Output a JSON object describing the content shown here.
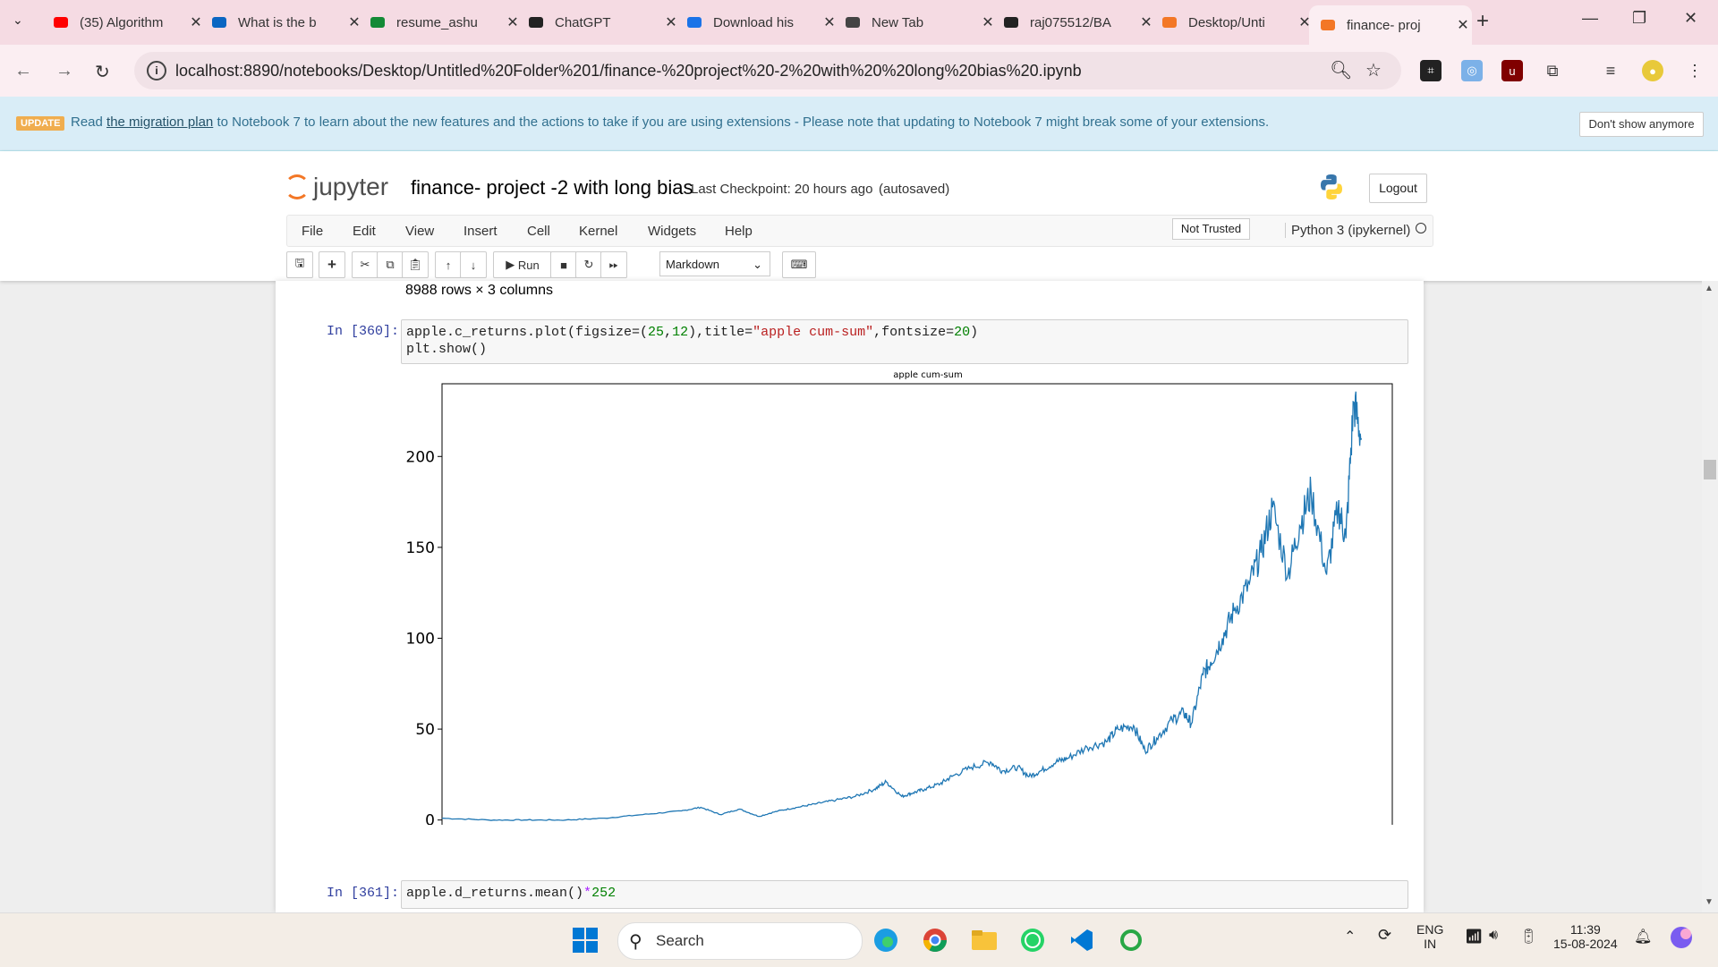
{
  "tabs": [
    {
      "label": "(35) Algorithm",
      "icon": "youtube-icon",
      "color": "#ff0000"
    },
    {
      "label": "What is the b",
      "icon": "linkedin-icon",
      "color": "#0a66c2"
    },
    {
      "label": "resume_ashu",
      "icon": "overleaf-icon",
      "color": "#138a36"
    },
    {
      "label": "ChatGPT",
      "icon": "chatgpt-icon",
      "color": "#222222"
    },
    {
      "label": "Download his",
      "icon": "download-icon",
      "color": "#1a73e8"
    },
    {
      "label": "New Tab",
      "icon": "chrome-icon",
      "color": "#444444"
    },
    {
      "label": "raj075512/BA",
      "icon": "github-icon",
      "color": "#222222"
    },
    {
      "label": "Desktop/Unti",
      "icon": "jupyter-icon",
      "color": "#f37726"
    },
    {
      "label": "finance- proj",
      "icon": "notebook-icon",
      "color": "#f37726"
    }
  ],
  "url": "localhost:8890/notebooks/Desktop/Untitled%20Folder%201/finance-%20project%20-2%20with%20%20long%20bias%20.ipynb",
  "banner": {
    "badge": "UPDATE",
    "text_before": "Read ",
    "link": "the migration plan",
    "text_after": " to Notebook 7 to learn about the new features and the actions to take if you are using extensions - Please note that updating to Notebook 7 might break some of your extensions.",
    "dismiss": "Don't show anymore"
  },
  "header": {
    "logo_text": "jupyter",
    "title": "finance- project -2 with long bias",
    "checkpoint": "Last Checkpoint: 20 hours ago",
    "autosave": "(autosaved)",
    "logout": "Logout"
  },
  "menu": [
    "File",
    "Edit",
    "View",
    "Insert",
    "Cell",
    "Kernel",
    "Widgets",
    "Help"
  ],
  "status": {
    "trusted": "Not Trusted",
    "kernel": "Python 3 (ipykernel)"
  },
  "toolbar": {
    "run": "Run",
    "cell_type": "Markdown"
  },
  "cells": {
    "prev_output": "8988 rows × 3 columns",
    "c1_prompt": "In [360]:",
    "c2_prompt": "In [361]:"
  },
  "chart_data": {
    "type": "line",
    "title": "apple cum-sum",
    "xlabel": "",
    "ylabel": "",
    "xlim": [
      2000.8,
      2025.4
    ],
    "ylim": [
      -10,
      240
    ],
    "xticks": [
      2005,
      2010,
      2015,
      2020
    ],
    "yticks": [
      0,
      50,
      100,
      150,
      200
    ],
    "grid": false,
    "color": "#1f77b4",
    "series": [
      {
        "x": [
          2000.8,
          2002,
          2003,
          2004,
          2005,
          2006,
          2007,
          2007.5,
          2008,
          2008.5,
          2009,
          2009.5,
          2010,
          2010.5,
          2011,
          2011.5,
          2012,
          2012.3,
          2012.7,
          2013,
          2013.3,
          2013.7,
          2014,
          2014.5,
          2015,
          2015.3,
          2015.7,
          2016,
          2016.3,
          2016.7,
          2017,
          2017.5,
          2018,
          2018.3,
          2018.7,
          2019,
          2019.3,
          2019.7,
          2020,
          2020.2,
          2020.5,
          2020.7,
          2021,
          2021.3,
          2021.7,
          2022,
          2022.3,
          2022.7,
          2023,
          2023.3,
          2023.7,
          2024,
          2024.2,
          2024.4,
          2024.6
        ],
        "y": [
          1,
          0,
          0,
          0,
          1,
          3,
          5,
          7,
          3,
          6,
          2,
          5,
          7,
          9,
          11,
          13,
          17,
          21,
          13,
          15,
          17,
          20,
          24,
          29,
          32,
          27,
          29,
          24,
          27,
          32,
          34,
          40,
          43,
          50,
          52,
          38,
          45,
          55,
          59,
          53,
          80,
          87,
          100,
          115,
          130,
          147,
          172,
          135,
          162,
          180,
          135,
          172,
          155,
          230,
          210
        ]
      }
    ]
  },
  "taskbar": {
    "search": "Search",
    "lang1": "ENG",
    "lang2": "IN",
    "time": "11:39",
    "date": "15-08-2024"
  }
}
